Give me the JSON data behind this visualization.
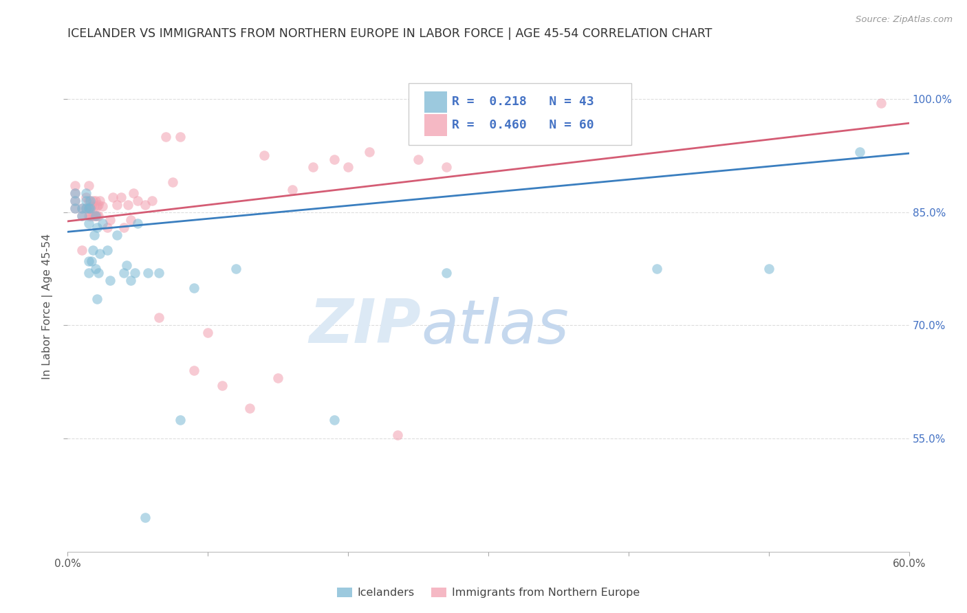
{
  "title": "ICELANDER VS IMMIGRANTS FROM NORTHERN EUROPE IN LABOR FORCE | AGE 45-54 CORRELATION CHART",
  "source": "Source: ZipAtlas.com",
  "ylabel": "In Labor Force | Age 45-54",
  "xmin": 0.0,
  "xmax": 0.6,
  "ymin": 0.4,
  "ymax": 1.05,
  "ytick_values": [
    0.55,
    0.7,
    0.85,
    1.0
  ],
  "ytick_labels": [
    "55.0%",
    "70.0%",
    "85.0%",
    "100.0%"
  ],
  "legend_R_blue": "0.218",
  "legend_N_blue": "43",
  "legend_R_pink": "0.460",
  "legend_N_pink": "60",
  "blue_color": "#7bb8d4",
  "pink_color": "#f2a0b0",
  "blue_line_color": "#3a7ebf",
  "pink_line_color": "#d45c74",
  "legend_blue_label": "Icelanders",
  "legend_pink_label": "Immigrants from Northern Europe",
  "blue_scatter_x": [
    0.005,
    0.005,
    0.005,
    0.01,
    0.01,
    0.013,
    0.013,
    0.013,
    0.015,
    0.015,
    0.015,
    0.015,
    0.016,
    0.016,
    0.017,
    0.018,
    0.019,
    0.02,
    0.02,
    0.021,
    0.021,
    0.022,
    0.023,
    0.025,
    0.028,
    0.03,
    0.035,
    0.04,
    0.042,
    0.045,
    0.048,
    0.05,
    0.055,
    0.057,
    0.065,
    0.08,
    0.09,
    0.12,
    0.19,
    0.27,
    0.42,
    0.5,
    0.565
  ],
  "blue_scatter_y": [
    0.855,
    0.865,
    0.875,
    0.845,
    0.855,
    0.855,
    0.865,
    0.875,
    0.77,
    0.785,
    0.835,
    0.855,
    0.855,
    0.865,
    0.785,
    0.8,
    0.82,
    0.775,
    0.845,
    0.735,
    0.83,
    0.77,
    0.795,
    0.835,
    0.8,
    0.76,
    0.82,
    0.77,
    0.78,
    0.76,
    0.77,
    0.835,
    0.445,
    0.77,
    0.77,
    0.575,
    0.75,
    0.775,
    0.575,
    0.77,
    0.775,
    0.775,
    0.93
  ],
  "pink_scatter_x": [
    0.005,
    0.005,
    0.005,
    0.005,
    0.01,
    0.01,
    0.01,
    0.013,
    0.013,
    0.015,
    0.015,
    0.015,
    0.015,
    0.016,
    0.016,
    0.017,
    0.017,
    0.018,
    0.018,
    0.019,
    0.019,
    0.02,
    0.02,
    0.021,
    0.021,
    0.022,
    0.022,
    0.023,
    0.025,
    0.028,
    0.03,
    0.032,
    0.035,
    0.038,
    0.04,
    0.043,
    0.045,
    0.047,
    0.05,
    0.055,
    0.06,
    0.065,
    0.07,
    0.075,
    0.08,
    0.09,
    0.1,
    0.11,
    0.13,
    0.14,
    0.15,
    0.16,
    0.175,
    0.19,
    0.2,
    0.215,
    0.235,
    0.25,
    0.27,
    0.58
  ],
  "pink_scatter_y": [
    0.855,
    0.865,
    0.875,
    0.885,
    0.8,
    0.845,
    0.855,
    0.855,
    0.87,
    0.845,
    0.855,
    0.865,
    0.885,
    0.845,
    0.857,
    0.845,
    0.858,
    0.845,
    0.865,
    0.845,
    0.858,
    0.845,
    0.865,
    0.845,
    0.858,
    0.845,
    0.86,
    0.865,
    0.858,
    0.83,
    0.84,
    0.87,
    0.86,
    0.87,
    0.83,
    0.86,
    0.84,
    0.875,
    0.865,
    0.86,
    0.865,
    0.71,
    0.95,
    0.89,
    0.95,
    0.64,
    0.69,
    0.62,
    0.59,
    0.925,
    0.63,
    0.88,
    0.91,
    0.92,
    0.91,
    0.93,
    0.555,
    0.92,
    0.91,
    0.995
  ],
  "blue_line_x0": 0.0,
  "blue_line_x1": 0.6,
  "blue_line_y0": 0.824,
  "blue_line_y1": 0.928,
  "pink_line_x0": 0.0,
  "pink_line_x1": 0.6,
  "pink_line_y0": 0.838,
  "pink_line_y1": 0.968,
  "watermark_zip": "ZIP",
  "watermark_atlas": "atlas",
  "background_color": "#ffffff",
  "grid_color": "#dddddd",
  "title_color": "#333333",
  "axis_label_color": "#555555",
  "right_axis_color": "#4472c4",
  "watermark_color_zip": "#dce9f5",
  "watermark_color_atlas": "#c5d8ee"
}
